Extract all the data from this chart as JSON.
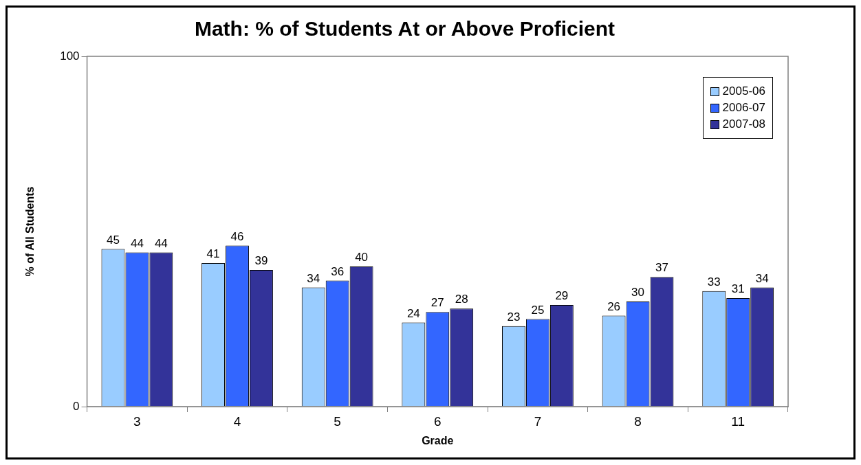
{
  "chart_data": {
    "type": "bar",
    "title": "Math: % of Students At or Above Proficient",
    "xlabel": "Grade",
    "ylabel": "% of All Students",
    "categories": [
      "3",
      "4",
      "5",
      "6",
      "7",
      "8",
      "11"
    ],
    "series": [
      {
        "name": "2005-06",
        "color": "#99ccff",
        "values": [
          45,
          41,
          34,
          24,
          23,
          26,
          33
        ]
      },
      {
        "name": "2006-07",
        "color": "#3366ff",
        "values": [
          44,
          46,
          36,
          27,
          25,
          30,
          31
        ]
      },
      {
        "name": "2007-08",
        "color": "#333399",
        "values": [
          44,
          39,
          40,
          28,
          29,
          37,
          34
        ]
      }
    ],
    "ylim": [
      0,
      100
    ],
    "yticks": [
      0,
      100
    ],
    "grid": false,
    "legend": "top right",
    "data_labels": true
  }
}
